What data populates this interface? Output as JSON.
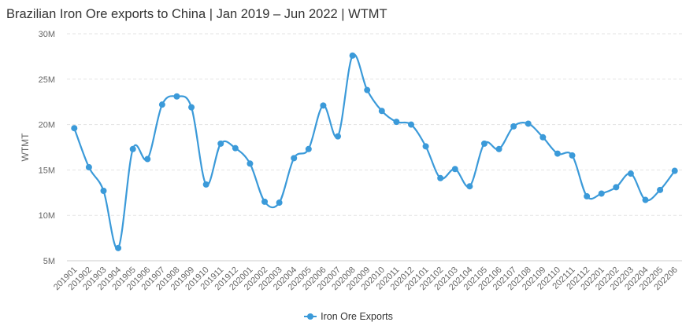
{
  "chart_data": {
    "type": "line",
    "title": "Brazilian Iron Ore exports to China | Jan 2019 – Jun 2022 | WTMT",
    "ylabel": "WTMT",
    "xlabel": "",
    "ylim": [
      5000000,
      30000000
    ],
    "yticks": [
      5000000,
      10000000,
      15000000,
      20000000,
      25000000,
      30000000
    ],
    "ytick_labels": [
      "5M",
      "10M",
      "15M",
      "20M",
      "25M",
      "30M"
    ],
    "grid": true,
    "legend_position": "bottom",
    "categories": [
      "201901",
      "201902",
      "201903",
      "201904",
      "201905",
      "201906",
      "201907",
      "201908",
      "201909",
      "201910",
      "201911",
      "201912",
      "202001",
      "202002",
      "202003",
      "202004",
      "202005",
      "202006",
      "202007",
      "202008",
      "202009",
      "202010",
      "202011",
      "202012",
      "202101",
      "202102",
      "202103",
      "202104",
      "202105",
      "202106",
      "202107",
      "202108",
      "202109",
      "202110",
      "202111",
      "202112",
      "202201",
      "202202",
      "202203",
      "202204",
      "202205",
      "202206"
    ],
    "series": [
      {
        "name": "Iron Ore Exports",
        "color": "#3b9ad9",
        "values": [
          19600000,
          15300000,
          12700000,
          6400000,
          17300000,
          16200000,
          22200000,
          23100000,
          21900000,
          13400000,
          17900000,
          17400000,
          15700000,
          11500000,
          11400000,
          16300000,
          17300000,
          22100000,
          18700000,
          27600000,
          23800000,
          21500000,
          20300000,
          20000000,
          17600000,
          14100000,
          15100000,
          13200000,
          17900000,
          17300000,
          19800000,
          20100000,
          18600000,
          16800000,
          16600000,
          12100000,
          12400000,
          13100000,
          14600000,
          11700000,
          12800000,
          14900000
        ]
      }
    ]
  }
}
